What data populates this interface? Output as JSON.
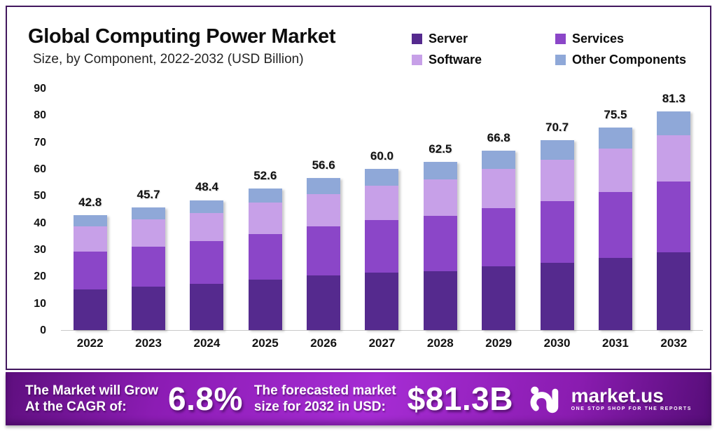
{
  "header": {
    "title": "Global Computing Power Market",
    "subtitle": "Size, by Component, 2022-2032 (USD Billion)"
  },
  "chart_data": {
    "type": "bar",
    "stacked": true,
    "title": "Global Computing Power Market Size, by Component, 2022-2032 (USD Billion)",
    "categories": [
      "2022",
      "2023",
      "2024",
      "2025",
      "2026",
      "2027",
      "2028",
      "2029",
      "2030",
      "2031",
      "2032"
    ],
    "series": [
      {
        "name": "Server",
        "color": "#552a8e",
        "values": [
          15.2,
          16.3,
          17.2,
          18.7,
          20.4,
          21.3,
          21.9,
          23.7,
          25.0,
          27.0,
          28.9
        ]
      },
      {
        "name": "Services",
        "color": "#8b46c8",
        "values": [
          14.1,
          14.8,
          15.9,
          17.0,
          18.1,
          19.6,
          20.6,
          21.7,
          23.0,
          24.4,
          26.4
        ]
      },
      {
        "name": "Software",
        "color": "#c7a0e8",
        "values": [
          9.3,
          10.2,
          10.6,
          11.7,
          12.2,
          12.9,
          13.6,
          14.7,
          15.5,
          16.2,
          17.2
        ]
      },
      {
        "name": "Other Components",
        "color": "#8fa8d8",
        "values": [
          4.2,
          4.4,
          4.7,
          5.2,
          5.9,
          6.2,
          6.4,
          6.7,
          7.2,
          7.9,
          8.8
        ]
      }
    ],
    "totals": [
      42.8,
      45.7,
      48.4,
      52.6,
      56.6,
      60.0,
      62.5,
      66.8,
      70.7,
      75.5,
      81.3
    ],
    "yticks": [
      0,
      10,
      20,
      30,
      40,
      50,
      60,
      70,
      80,
      90
    ],
    "ylim": [
      0,
      90
    ],
    "xlabel": "",
    "ylabel": "",
    "grid": false,
    "legend_position": "top-right"
  },
  "banner": {
    "cagr_label_line1": "The Market will Grow",
    "cagr_label_line2": "At the CAGR of:",
    "cagr_value": "6.8%",
    "forecast_label_line1": "The forecasted market",
    "forecast_label_line2": "size for 2032 in USD:",
    "forecast_value": "$81.3B",
    "brand": {
      "name": "market.us",
      "tagline": "ONE STOP SHOP FOR THE REPORTS"
    }
  },
  "colors": {
    "card_border": "#42175e",
    "banner_gradient_mid": "#a62cd4",
    "axis_line": "#c9c9c9"
  }
}
